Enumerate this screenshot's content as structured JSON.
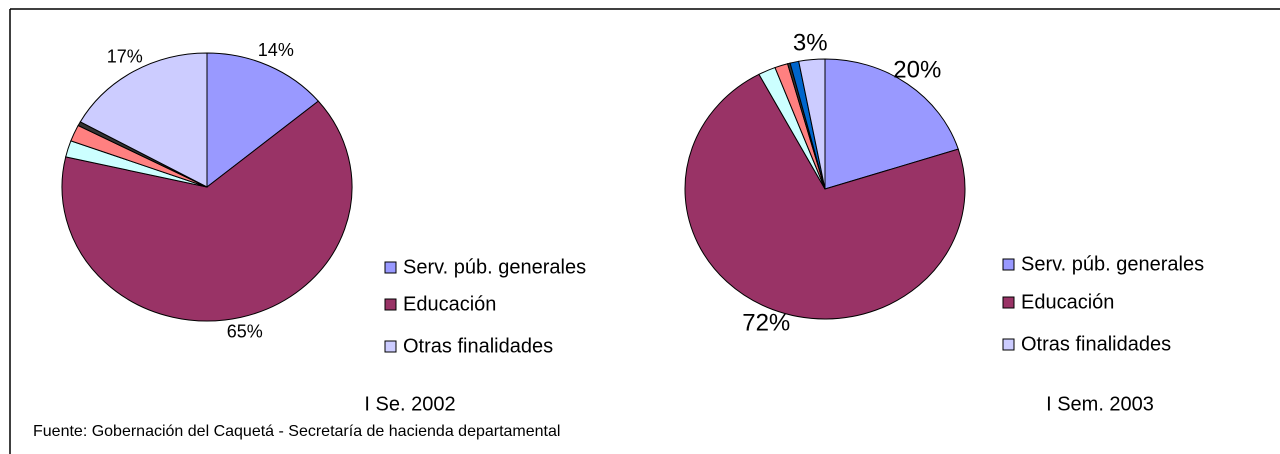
{
  "chart_data": [
    {
      "type": "pie",
      "title": "I Se. 2002",
      "categories": [
        "Serv. púb. generales",
        "Educación",
        null,
        null,
        null,
        "Otras finalidades"
      ],
      "values": [
        14,
        65,
        2,
        2,
        0.5,
        17
      ],
      "value_labels": [
        "14%",
        "65%",
        null,
        null,
        null,
        "17%"
      ],
      "colors": [
        "#9999ff",
        "#993366",
        "#ccffff",
        "#ff8080",
        "#333333",
        "#ccccff"
      ]
    },
    {
      "type": "pie",
      "title": "I Sem. 2003",
      "categories": [
        "Serv. púb. generales",
        "Educación",
        null,
        null,
        null,
        null,
        "Otras finalidades"
      ],
      "values": [
        20,
        72,
        2,
        1.5,
        0.3,
        1,
        3
      ],
      "value_labels": [
        "20%",
        "72%",
        null,
        null,
        null,
        null,
        "3%"
      ],
      "colors": [
        "#9999ff",
        "#993366",
        "#ccffff",
        "#ff8080",
        "#333333",
        "#0066cc",
        "#ccccff"
      ]
    }
  ],
  "source": "Fuente: Gobernación del Caquetá - Secretaría de hacienda departamental"
}
